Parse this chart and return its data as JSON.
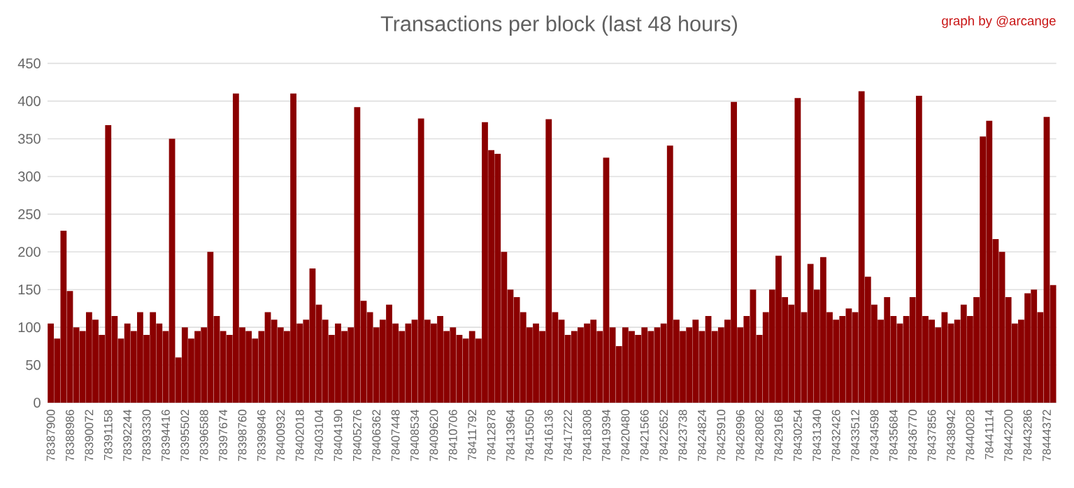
{
  "chart_data": {
    "type": "bar",
    "title": "Transactions per block (last 48 hours)",
    "annotations": [
      "graph by @arcange"
    ],
    "categories": [
      "78387900",
      null,
      null,
      "78388986",
      null,
      null,
      "78390072",
      null,
      null,
      "78391158",
      null,
      null,
      "78392244",
      null,
      null,
      "78393330",
      null,
      null,
      "78394416",
      null,
      null,
      "78395502",
      null,
      null,
      "78396588",
      null,
      null,
      "78397674",
      null,
      null,
      "78398760",
      null,
      null,
      "78399846",
      null,
      null,
      "78400932",
      null,
      null,
      "78402018",
      null,
      null,
      "78403104",
      null,
      null,
      "78404190",
      null,
      null,
      "78405276",
      null,
      null,
      "78406362",
      null,
      null,
      "78407448",
      null,
      null,
      "78408534",
      null,
      null,
      "78409620",
      null,
      null,
      "78410706",
      null,
      null,
      "78411792",
      null,
      null,
      "78412878",
      null,
      null,
      "78413964",
      null,
      null,
      "78415050",
      null,
      null,
      "78416136",
      null,
      null,
      "78417222",
      null,
      null,
      "78418308",
      null,
      null,
      "78419394",
      null,
      null,
      "78420480",
      null,
      null,
      "78421566",
      null,
      null,
      "78422652",
      null,
      null,
      "78423738",
      null,
      null,
      "78424824",
      null,
      null,
      "78425910",
      null,
      null,
      "78426996",
      null,
      null,
      "78428082",
      null,
      null,
      "78429168",
      null,
      null,
      "78430254",
      null,
      null,
      "78431340",
      null,
      null,
      "78432426",
      null,
      null,
      "78433512",
      null,
      null,
      "78434598",
      null,
      null,
      "78435684",
      null,
      null,
      "78436770",
      null,
      null,
      "78437856",
      null,
      null,
      "78438942",
      null,
      null,
      "78440028",
      null,
      null,
      "78441114",
      null,
      null,
      "78442200",
      null,
      null,
      "78443286",
      null,
      null,
      "78444372",
      null
    ],
    "ylim": [
      0,
      450
    ],
    "yticks": [
      0,
      50,
      100,
      150,
      200,
      250,
      300,
      350,
      400,
      450
    ],
    "grid": "y",
    "color": "#8b0000",
    "values": [
      105,
      85,
      228,
      148,
      100,
      95,
      120,
      110,
      90,
      368,
      115,
      85,
      105,
      95,
      120,
      90,
      120,
      105,
      95,
      350,
      60,
      100,
      85,
      95,
      100,
      200,
      115,
      95,
      90,
      410,
      100,
      95,
      85,
      95,
      120,
      110,
      100,
      95,
      410,
      105,
      110,
      178,
      130,
      110,
      90,
      105,
      95,
      100,
      392,
      135,
      120,
      100,
      110,
      130,
      105,
      95,
      105,
      110,
      377,
      110,
      105,
      115,
      95,
      100,
      90,
      85,
      95,
      85,
      372,
      335,
      330,
      200,
      150,
      140,
      120,
      100,
      105,
      95,
      376,
      120,
      110,
      90,
      95,
      100,
      105,
      110,
      95,
      325,
      100,
      75,
      100,
      95,
      90,
      100,
      95,
      100,
      105,
      341,
      110,
      95,
      100,
      110,
      95,
      115,
      95,
      100,
      110,
      399,
      100,
      115,
      150,
      90,
      120,
      150,
      195,
      140,
      130,
      404,
      120,
      184,
      150,
      193,
      120,
      110,
      115,
      125,
      120,
      413,
      167,
      130,
      110,
      140,
      115,
      105,
      115,
      140,
      407,
      115,
      110,
      100,
      120,
      105,
      110,
      130,
      115,
      140,
      353,
      374,
      217,
      200,
      140,
      105,
      110,
      145,
      150,
      120,
      379,
      156
    ]
  }
}
